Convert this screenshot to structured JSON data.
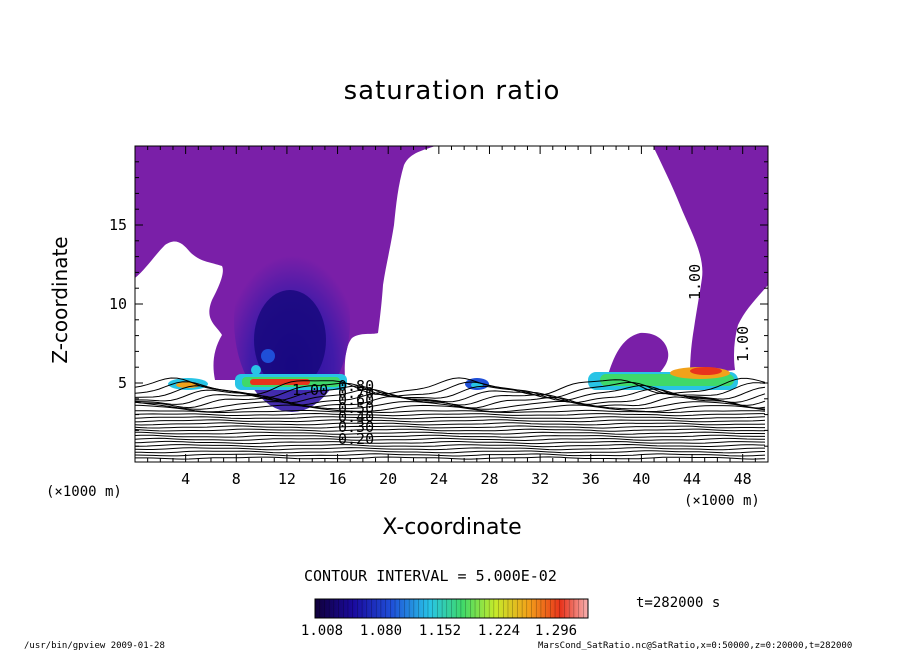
{
  "chart_data": {
    "type": "contour",
    "title": "saturation ratio",
    "xlabel": "X-coordinate",
    "ylabel": "Z-coordinate",
    "x_unit_label": "(×1000 m)",
    "xlim": [
      0,
      50
    ],
    "ylim": [
      0,
      20
    ],
    "x_ticks": [
      4,
      8,
      12,
      16,
      20,
      24,
      28,
      32,
      36,
      40,
      44,
      48
    ],
    "y_ticks": [
      5,
      10,
      15
    ],
    "contour_interval_text": "CONTOUR INTERVAL = 5.000E-02",
    "contour_interval": 0.05,
    "contour_labels": [
      "1.00",
      "1.00",
      "1.00",
      "0.20",
      "0.30",
      "0.40",
      "0.50",
      "0.60",
      "0.70",
      "0.80"
    ],
    "colorbar": {
      "range": [
        1.008,
        1.296
      ],
      "ticks": [
        "1.008",
        "1.080",
        "1.152",
        "1.224",
        "1.296"
      ],
      "colormap": [
        "#10003a",
        "#1a0a9e",
        "#1f4fd8",
        "#28c4e6",
        "#3fd96a",
        "#c6ea2a",
        "#f2a21a",
        "#e8341c",
        "#f7b0b0"
      ]
    },
    "colors": {
      "saturated_region": "#7a1fa8",
      "background": "#ffffff"
    }
  },
  "annotations": {
    "time": "t=282000  s",
    "footer_left": "/usr/bin/gpview  2009-01-28",
    "footer_right": "MarsCond_SatRatio.nc@SatRatio,x=0:50000,z=0:20000,t=282000"
  }
}
